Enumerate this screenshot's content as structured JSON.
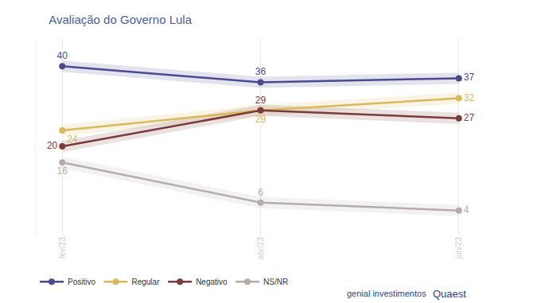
{
  "chart_data": {
    "type": "line",
    "title": "Avaliação do Governo Lula",
    "categories": [
      "fev/23",
      "abr/23",
      "jun/23"
    ],
    "series": [
      {
        "name": "Positivo",
        "color": "#4b4a8f",
        "values": [
          40,
          36,
          37
        ]
      },
      {
        "name": "Regular",
        "color": "#d9b95a",
        "values": [
          24,
          29,
          32
        ]
      },
      {
        "name": "Negativo",
        "color": "#7a3b3b",
        "values": [
          20,
          29,
          27
        ]
      },
      {
        "name": "NS/NR",
        "color": "#b5acac",
        "values": [
          16,
          6,
          4
        ]
      }
    ],
    "ylim": [
      -2,
      47
    ],
    "tick_labels": "x",
    "grid": true,
    "legend": "bottom left",
    "data_labels": true,
    "marker": "circle",
    "annotations": [
      "genial investimentos",
      "Quaest"
    ]
  }
}
